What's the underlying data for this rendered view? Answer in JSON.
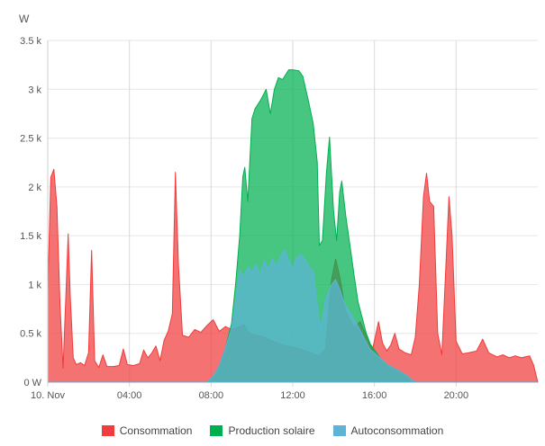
{
  "chart_data": {
    "type": "area",
    "yunit": "W",
    "ylim": [
      0,
      3500
    ],
    "yticks": [
      {
        "v": 0,
        "label": "0 W"
      },
      {
        "v": 500,
        "label": "0.5 k"
      },
      {
        "v": 1000,
        "label": "1 k"
      },
      {
        "v": 1500,
        "label": "1.5 k"
      },
      {
        "v": 2000,
        "label": "2 k"
      },
      {
        "v": 2500,
        "label": "2.5 k"
      },
      {
        "v": 3000,
        "label": "3 k"
      },
      {
        "v": 3500,
        "label": "3.5 k"
      }
    ],
    "xlim": [
      0,
      24
    ],
    "xticks": [
      {
        "v": 0,
        "label": "10. Nov"
      },
      {
        "v": 4,
        "label": "04:00"
      },
      {
        "v": 8,
        "label": "08:00"
      },
      {
        "v": 12,
        "label": "12:00"
      },
      {
        "v": 16,
        "label": "16:00"
      },
      {
        "v": 20,
        "label": "20:00"
      }
    ],
    "grid": true,
    "legend_position": "bottom",
    "series": [
      {
        "name": "Consommation",
        "color": "#f03c3c",
        "points": [
          [
            0.0,
            920
          ],
          [
            0.15,
            2100
          ],
          [
            0.3,
            2180
          ],
          [
            0.45,
            1800
          ],
          [
            0.6,
            800
          ],
          [
            0.75,
            140
          ],
          [
            0.9,
            950
          ],
          [
            1.0,
            1520
          ],
          [
            1.1,
            900
          ],
          [
            1.25,
            250
          ],
          [
            1.4,
            180
          ],
          [
            1.6,
            200
          ],
          [
            1.8,
            170
          ],
          [
            2.0,
            300
          ],
          [
            2.15,
            1350
          ],
          [
            2.3,
            220
          ],
          [
            2.5,
            150
          ],
          [
            2.7,
            280
          ],
          [
            2.9,
            160
          ],
          [
            3.2,
            160
          ],
          [
            3.5,
            170
          ],
          [
            3.7,
            340
          ],
          [
            3.9,
            180
          ],
          [
            4.2,
            170
          ],
          [
            4.5,
            190
          ],
          [
            4.7,
            330
          ],
          [
            4.9,
            250
          ],
          [
            5.1,
            300
          ],
          [
            5.3,
            370
          ],
          [
            5.5,
            220
          ],
          [
            5.7,
            430
          ],
          [
            5.9,
            520
          ],
          [
            6.1,
            700
          ],
          [
            6.25,
            2150
          ],
          [
            6.4,
            1200
          ],
          [
            6.6,
            480
          ],
          [
            6.9,
            460
          ],
          [
            7.2,
            540
          ],
          [
            7.5,
            510
          ],
          [
            7.8,
            580
          ],
          [
            8.1,
            640
          ],
          [
            8.4,
            520
          ],
          [
            8.7,
            570
          ],
          [
            9.0,
            540
          ],
          [
            9.3,
            560
          ],
          [
            9.6,
            590
          ],
          [
            9.8,
            520
          ],
          [
            10.0,
            490
          ],
          [
            10.5,
            470
          ],
          [
            11.0,
            420
          ],
          [
            11.5,
            380
          ],
          [
            12.0,
            360
          ],
          [
            12.5,
            330
          ],
          [
            13.0,
            290
          ],
          [
            13.3,
            270
          ],
          [
            13.6,
            340
          ],
          [
            13.9,
            1050
          ],
          [
            14.1,
            1260
          ],
          [
            14.3,
            1080
          ],
          [
            14.6,
            720
          ],
          [
            15.0,
            560
          ],
          [
            15.3,
            620
          ],
          [
            15.6,
            480
          ],
          [
            15.9,
            330
          ],
          [
            16.2,
            620
          ],
          [
            16.4,
            400
          ],
          [
            16.6,
            320
          ],
          [
            16.8,
            380
          ],
          [
            17.0,
            500
          ],
          [
            17.2,
            340
          ],
          [
            17.5,
            300
          ],
          [
            17.8,
            280
          ],
          [
            18.0,
            460
          ],
          [
            18.2,
            1000
          ],
          [
            18.4,
            1900
          ],
          [
            18.55,
            2140
          ],
          [
            18.7,
            1850
          ],
          [
            18.9,
            1800
          ],
          [
            19.1,
            500
          ],
          [
            19.3,
            280
          ],
          [
            19.5,
            1200
          ],
          [
            19.65,
            1900
          ],
          [
            19.8,
            1500
          ],
          [
            20.0,
            420
          ],
          [
            20.3,
            290
          ],
          [
            20.6,
            300
          ],
          [
            21.0,
            320
          ],
          [
            21.3,
            440
          ],
          [
            21.6,
            300
          ],
          [
            22.0,
            260
          ],
          [
            22.3,
            280
          ],
          [
            22.6,
            250
          ],
          [
            22.9,
            270
          ],
          [
            23.2,
            250
          ],
          [
            23.6,
            270
          ],
          [
            23.8,
            170
          ],
          [
            24.0,
            0
          ]
        ]
      },
      {
        "name": "Production solaire",
        "color": "#00b050",
        "points": [
          [
            0,
            0
          ],
          [
            7.8,
            0
          ],
          [
            8.1,
            60
          ],
          [
            8.4,
            170
          ],
          [
            8.7,
            350
          ],
          [
            9.0,
            600
          ],
          [
            9.2,
            1000
          ],
          [
            9.4,
            1500
          ],
          [
            9.55,
            2100
          ],
          [
            9.65,
            2200
          ],
          [
            9.8,
            1850
          ],
          [
            10.0,
            2700
          ],
          [
            10.15,
            2800
          ],
          [
            10.4,
            2880
          ],
          [
            10.7,
            3000
          ],
          [
            10.9,
            2750
          ],
          [
            11.1,
            3000
          ],
          [
            11.3,
            3120
          ],
          [
            11.5,
            3100
          ],
          [
            11.8,
            3200
          ],
          [
            12.0,
            3200
          ],
          [
            12.3,
            3190
          ],
          [
            12.5,
            3130
          ],
          [
            12.8,
            2850
          ],
          [
            13.0,
            2650
          ],
          [
            13.2,
            2250
          ],
          [
            13.3,
            1400
          ],
          [
            13.45,
            1450
          ],
          [
            13.65,
            2150
          ],
          [
            13.8,
            2510
          ],
          [
            14.0,
            1750
          ],
          [
            14.15,
            1450
          ],
          [
            14.3,
            1950
          ],
          [
            14.4,
            2060
          ],
          [
            14.6,
            1700
          ],
          [
            14.8,
            1400
          ],
          [
            15.0,
            1100
          ],
          [
            15.2,
            820
          ],
          [
            15.4,
            660
          ],
          [
            15.6,
            500
          ],
          [
            15.8,
            390
          ],
          [
            16.0,
            330
          ],
          [
            16.3,
            240
          ],
          [
            16.7,
            170
          ],
          [
            17.0,
            140
          ],
          [
            17.5,
            80
          ],
          [
            17.8,
            30
          ],
          [
            18.0,
            0
          ],
          [
            24,
            0
          ]
        ]
      },
      {
        "name": "Autoconsommation",
        "color": "#5db4d8",
        "points": [
          [
            0,
            0
          ],
          [
            7.8,
            0
          ],
          [
            8.1,
            60
          ],
          [
            8.4,
            170
          ],
          [
            8.7,
            350
          ],
          [
            9.0,
            550
          ],
          [
            9.2,
            820
          ],
          [
            9.4,
            1150
          ],
          [
            9.6,
            1080
          ],
          [
            9.8,
            1180
          ],
          [
            10.0,
            1130
          ],
          [
            10.2,
            1210
          ],
          [
            10.4,
            1100
          ],
          [
            10.6,
            1250
          ],
          [
            10.8,
            1150
          ],
          [
            11.0,
            1270
          ],
          [
            11.2,
            1180
          ],
          [
            11.4,
            1290
          ],
          [
            11.6,
            1360
          ],
          [
            11.8,
            1250
          ],
          [
            12.0,
            1170
          ],
          [
            12.2,
            1280
          ],
          [
            12.4,
            1310
          ],
          [
            12.6,
            1260
          ],
          [
            12.8,
            1180
          ],
          [
            13.0,
            1140
          ],
          [
            13.2,
            800
          ],
          [
            13.35,
            540
          ],
          [
            13.6,
            840
          ],
          [
            13.9,
            1000
          ],
          [
            14.1,
            1050
          ],
          [
            14.3,
            950
          ],
          [
            14.6,
            780
          ],
          [
            14.9,
            680
          ],
          [
            15.2,
            570
          ],
          [
            15.5,
            450
          ],
          [
            15.8,
            330
          ],
          [
            16.0,
            300
          ],
          [
            16.3,
            240
          ],
          [
            16.7,
            170
          ],
          [
            17.0,
            140
          ],
          [
            17.5,
            80
          ],
          [
            17.8,
            30
          ],
          [
            18.0,
            0
          ],
          [
            24,
            0
          ]
        ]
      }
    ]
  },
  "legend": {
    "items": [
      {
        "label": "Consommation",
        "color": "#f03c3c"
      },
      {
        "label": "Production solaire",
        "color": "#00b050"
      },
      {
        "label": "Autoconsommation",
        "color": "#5db4d8"
      }
    ]
  }
}
